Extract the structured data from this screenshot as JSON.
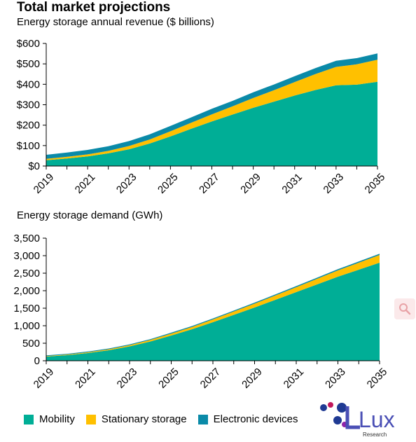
{
  "page": {
    "title": "Total market projections"
  },
  "colors": {
    "mobility": "#00AE96",
    "stationary": "#FFC000",
    "electronic": "#0A8AA8"
  },
  "legend": [
    {
      "label": "Mobility",
      "color": "#00AE96"
    },
    {
      "label": "Stationary storage",
      "color": "#FFC000"
    },
    {
      "label": "Electronic devices",
      "color": "#0A8AA8"
    }
  ],
  "logo": {
    "text": "Lux",
    "subtext": "Research"
  },
  "icons": {
    "zoom": "magnifier-icon"
  },
  "chart_data": [
    {
      "type": "area",
      "stacked": true,
      "title": "Energy storage annual revenue ($ billions)",
      "x": [
        2019,
        2020,
        2021,
        2022,
        2023,
        2024,
        2025,
        2026,
        2027,
        2028,
        2029,
        2030,
        2031,
        2032,
        2033,
        2034,
        2035
      ],
      "xticks": [
        "2019",
        "2021",
        "2023",
        "2025",
        "2027",
        "2029",
        "2031",
        "2033",
        "2035"
      ],
      "ylim": [
        0,
        600
      ],
      "yticks": [
        "$0",
        "$100",
        "$200",
        "$300",
        "$400",
        "$500",
        "$600"
      ],
      "series": [
        {
          "name": "Mobility",
          "values": [
            28,
            37,
            47,
            62,
            82,
            110,
            145,
            182,
            218,
            252,
            285,
            315,
            345,
            372,
            395,
            398,
            412
          ]
        },
        {
          "name": "Stationary storage",
          "values": [
            7,
            8,
            10,
            12,
            16,
            20,
            25,
            30,
            35,
            40,
            48,
            56,
            66,
            78,
            90,
            100,
            108
          ]
        },
        {
          "name": "Electronic devices",
          "values": [
            20,
            21,
            22,
            23,
            24,
            25,
            26,
            26,
            27,
            27,
            28,
            28,
            29,
            29,
            30,
            30,
            31
          ]
        }
      ]
    },
    {
      "type": "area",
      "stacked": true,
      "title": "Energy storage demand (GWh)",
      "x": [
        2019,
        2020,
        2021,
        2022,
        2023,
        2024,
        2025,
        2026,
        2027,
        2028,
        2029,
        2030,
        2031,
        2032,
        2033,
        2034,
        2035
      ],
      "xticks": [
        "2019",
        "2021",
        "2023",
        "2025",
        "2027",
        "2029",
        "2031",
        "2033",
        "2035"
      ],
      "ylim": [
        0,
        3500
      ],
      "yticks": [
        "0",
        "500",
        "1,000",
        "1,500",
        "2,000",
        "2,500",
        "3,000",
        "3,500"
      ],
      "series": [
        {
          "name": "Mobility",
          "values": [
            120,
            160,
            220,
            300,
            410,
            550,
            720,
            900,
            1100,
            1310,
            1520,
            1740,
            1960,
            2180,
            2400,
            2600,
            2800
          ]
        },
        {
          "name": "Stationary storage",
          "values": [
            15,
            18,
            22,
            28,
            35,
            45,
            55,
            65,
            80,
            95,
            110,
            125,
            140,
            160,
            180,
            200,
            220
          ]
        },
        {
          "name": "Electronic devices",
          "values": [
            20,
            20,
            22,
            22,
            24,
            24,
            26,
            26,
            28,
            28,
            30,
            30,
            32,
            32,
            34,
            34,
            36
          ]
        }
      ]
    }
  ]
}
